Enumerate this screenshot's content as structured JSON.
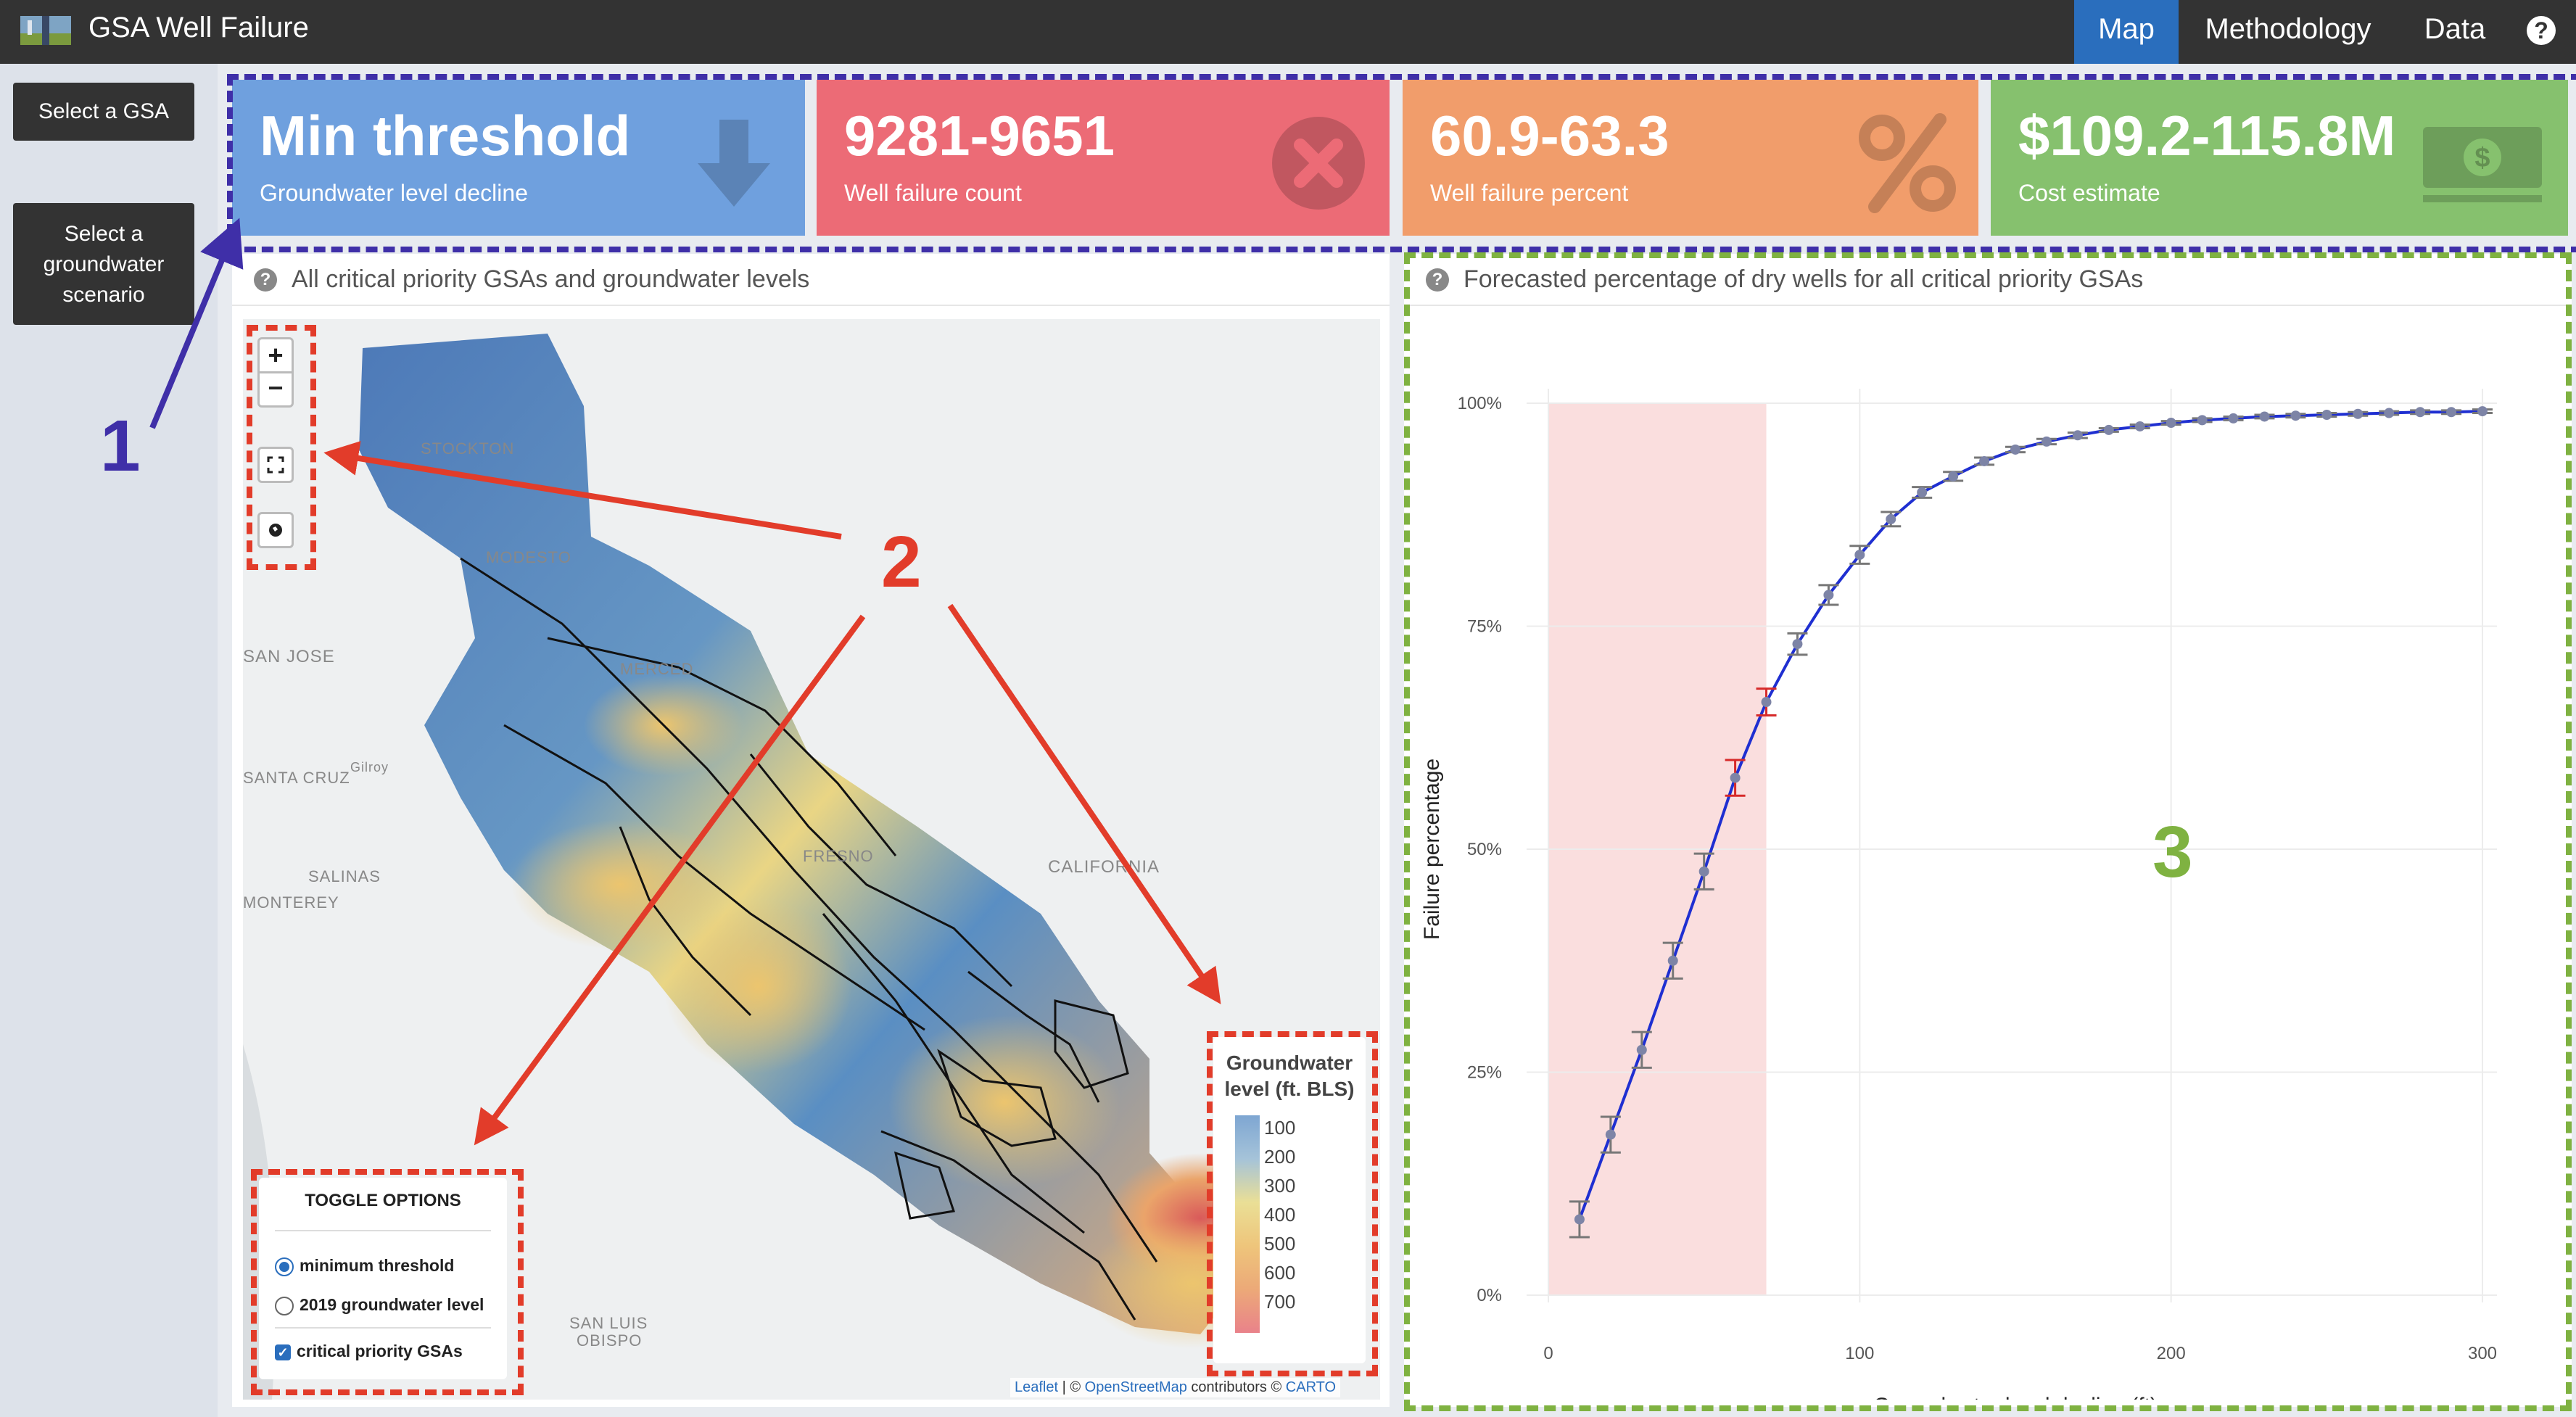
{
  "navbar": {
    "title": "GSA Well Failure",
    "tabs": [
      {
        "label": "Map",
        "active": true
      },
      {
        "label": "Methodology",
        "active": false
      },
      {
        "label": "Data",
        "active": false
      }
    ],
    "help": "?"
  },
  "sidebar": {
    "select_gsa": "Select a GSA",
    "select_scenario": [
      "Select a",
      "groundwater",
      "scenario"
    ]
  },
  "value_boxes": [
    {
      "value": "Min threshold",
      "label": "Groundwater level decline",
      "color": "#6fa0de",
      "icon": "arrow-down-icon"
    },
    {
      "value": "9281-9651",
      "label": "Well failure count",
      "color": "#ec6b76",
      "icon": "times-circle-icon"
    },
    {
      "value": "60.9-63.3",
      "label": "Well failure percent",
      "color": "#f19d6b",
      "icon": "percent-icon"
    },
    {
      "value": "$109.2-115.8M",
      "label": "Cost estimate",
      "color": "#86c16e",
      "icon": "money-bill-icon"
    }
  ],
  "map_panel": {
    "title": "All critical priority GSAs and groundwater levels",
    "zoom_in": "+",
    "zoom_out": "−",
    "places": [
      "STOCKTON",
      "MODESTO",
      "SAN JOSE",
      "MERCED",
      "SANTA CRUZ",
      "Gilroy",
      "SALINAS",
      "MONTEREY",
      "FRESNO",
      "CALIFORNIA",
      "SAN LUIS",
      "OBISPO"
    ],
    "legend": {
      "title_line1": "Groundwater",
      "title_line2": "level (ft. BLS)",
      "ticks": [
        "100",
        "200",
        "300",
        "400",
        "500",
        "600",
        "700"
      ]
    },
    "toggle": {
      "title": "TOGGLE OPTIONS",
      "options": [
        {
          "label": "minimum threshold",
          "selected": true
        },
        {
          "label": "2019 groundwater level",
          "selected": false
        }
      ],
      "checkbox": {
        "label": "critical priority GSAs",
        "checked": true
      }
    },
    "attribution": {
      "leaflet": "Leaflet",
      "sep1": " | © ",
      "osm": "OpenStreetMap",
      "contrib": " contributors © ",
      "carto": "CARTO"
    }
  },
  "chart_panel": {
    "title": "Forecasted percentage of dry wells for all critical priority GSAs"
  },
  "annotations": {
    "one": "1",
    "two": "2",
    "three": "3"
  },
  "chart_data": {
    "type": "line",
    "xlabel": "Groundwater level decline (ft)",
    "ylabel": "Failure percentage",
    "xlim": [
      0,
      300
    ],
    "ylim": [
      0,
      100
    ],
    "xticks": [
      "0",
      "100",
      "200",
      "300"
    ],
    "yticks": [
      "0%",
      "25%",
      "50%",
      "75%",
      "100%"
    ],
    "shaded_region": {
      "x_start": 0,
      "x_end": 70
    },
    "series": [
      {
        "x": [
          10,
          20,
          30,
          40,
          50,
          60,
          70,
          80,
          90,
          100,
          110,
          120,
          130,
          140,
          150,
          160,
          170,
          180,
          190,
          200,
          210,
          220,
          230,
          240,
          250,
          260,
          270,
          280,
          290,
          300
        ],
        "y": [
          8.5,
          18,
          27.5,
          37.5,
          47.5,
          58,
          66.5,
          73,
          78.5,
          83,
          87,
          90,
          91.8,
          93.5,
          94.8,
          95.7,
          96.4,
          97,
          97.4,
          97.8,
          98.1,
          98.3,
          98.5,
          98.6,
          98.7,
          98.8,
          98.9,
          99,
          99,
          99.1
        ],
        "err": [
          2,
          2,
          2,
          2,
          2,
          2,
          1.5,
          1.2,
          1.1,
          1,
          0.8,
          0.6,
          0.5,
          0.4,
          0.3,
          0.3,
          0.3,
          0.2,
          0.2,
          0.2,
          0.2,
          0.2,
          0.2,
          0.2,
          0.2,
          0.2,
          0.2,
          0.2,
          0.2,
          0.2
        ]
      }
    ],
    "highlight_x": [
      60,
      70
    ],
    "colors": {
      "line": "#1f2fd1",
      "points": "#7d84a6",
      "highlight": "#d62a2a",
      "shade": "#fadede"
    }
  }
}
